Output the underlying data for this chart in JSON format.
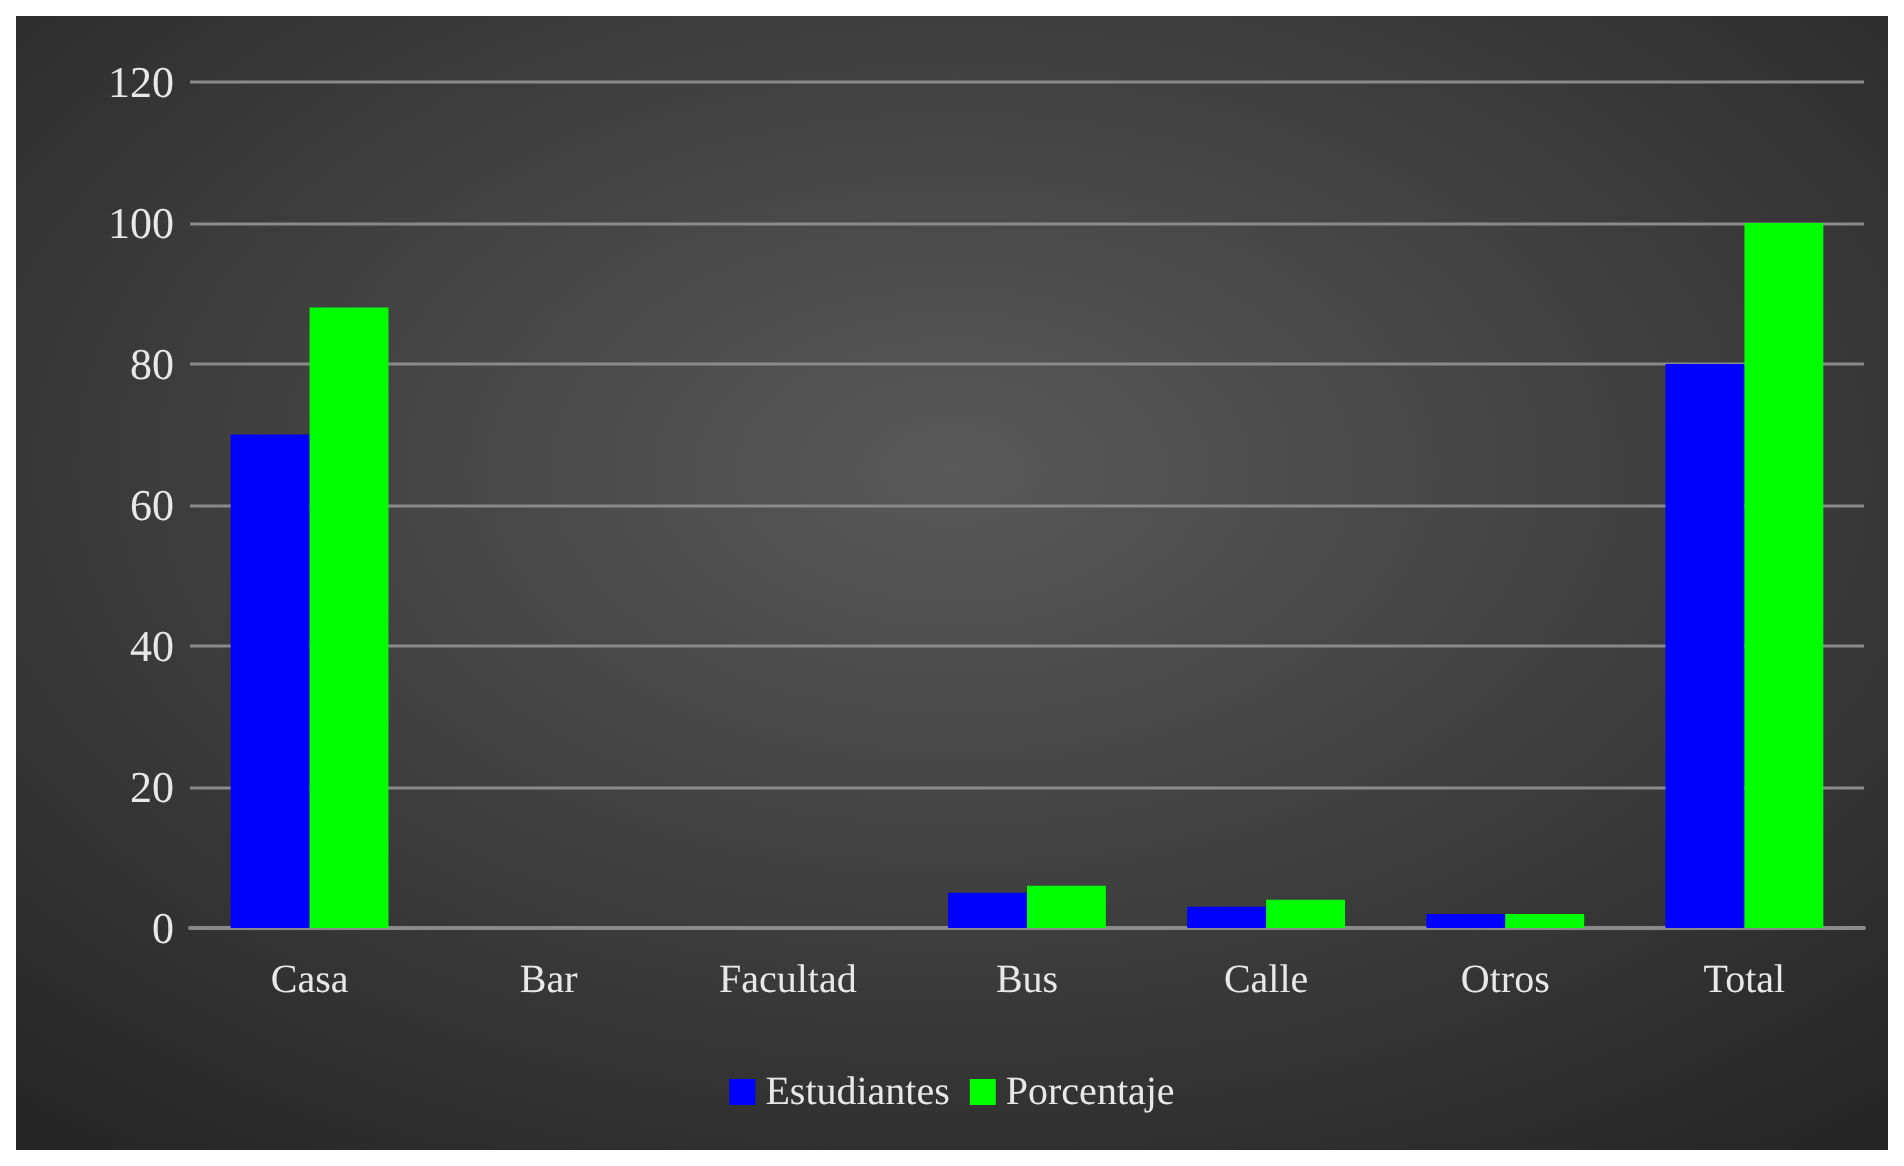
{
  "chart_data": {
    "type": "bar",
    "categories": [
      "Casa",
      "Bar",
      "Facultad",
      "Bus",
      "Calle",
      "Otros",
      "Total"
    ],
    "series": [
      {
        "name": "Estudiantes",
        "color": "#0000ff",
        "values": [
          70,
          0,
          0,
          5,
          3,
          2,
          80
        ]
      },
      {
        "name": "Porcentaje",
        "color": "#00ff00",
        "values": [
          88,
          0,
          0,
          6,
          4,
          2,
          100
        ]
      }
    ],
    "ylim": [
      0,
      120
    ],
    "yticks": [
      0,
      20,
      40,
      60,
      80,
      100,
      120
    ],
    "grid": "y",
    "legend": "bottom"
  }
}
